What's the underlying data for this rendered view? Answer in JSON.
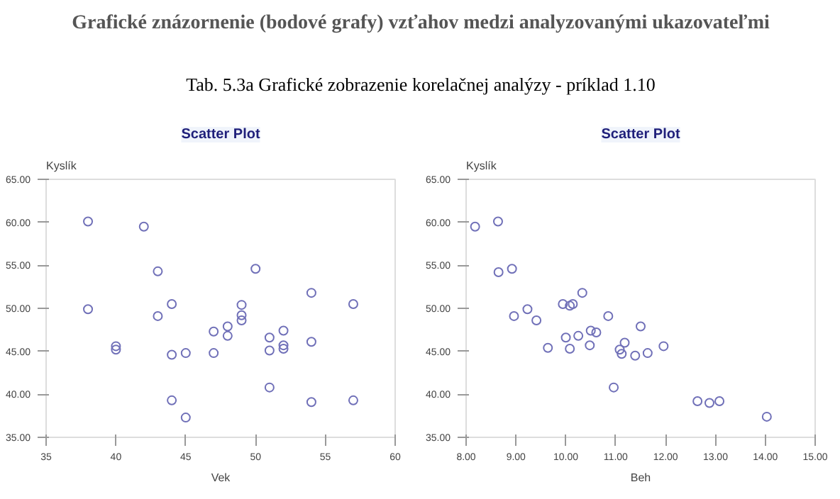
{
  "chart_data": [
    {
      "type": "scatter",
      "title": "Scatter Plot",
      "xlabel": "Vek",
      "ylabel": "Kyslík",
      "annotations": [
        "Grafické znázornenie (bodové grafy) vzťahov medzi analyzovanými ukazovateľmi",
        "Tab. 5.3a Grafické zobrazenie korelačnej analýzy - príklad 1.10"
      ],
      "xlim": [
        35,
        60
      ],
      "xticks": [
        35,
        40,
        45,
        50,
        55,
        60
      ],
      "ylim": [
        35,
        65
      ],
      "yticks": [
        {
          "value": 35,
          "label": "35.00"
        },
        {
          "value": 40,
          "label": "40.00"
        },
        {
          "value": 45,
          "label": "45.00"
        },
        {
          "value": 50,
          "label": "50.00"
        },
        {
          "value": 55,
          "label": "55.00"
        },
        {
          "value": 60,
          "label": "60.00"
        },
        {
          "value": 65,
          "label": "65.00"
        }
      ],
      "grid": false,
      "marker": "circle",
      "series": [
        {
          "color": "#7070b8",
          "x": [
            38,
            38,
            40,
            40,
            42,
            43,
            43,
            44,
            44,
            44,
            45,
            45,
            47,
            47,
            48,
            48,
            49,
            49,
            49,
            50,
            51,
            51,
            51,
            52,
            52,
            52,
            54,
            54,
            54,
            57,
            57
          ],
          "values": [
            60.1,
            49.9,
            45.6,
            45.2,
            59.5,
            54.3,
            49.1,
            50.5,
            44.6,
            39.3,
            44.8,
            37.3,
            47.3,
            44.8,
            47.9,
            46.8,
            50.4,
            49.2,
            48.6,
            54.6,
            46.6,
            45.1,
            40.8,
            47.4,
            45.7,
            45.3,
            51.8,
            46.1,
            39.1,
            50.5,
            39.3
          ]
        }
      ]
    },
    {
      "type": "scatter",
      "title": "Scatter Plot",
      "xlabel": "Beh",
      "ylabel": "Kyslík",
      "xlim": [
        8,
        15
      ],
      "xticks": [
        {
          "value": 8,
          "label": "8.00"
        },
        {
          "value": 9,
          "label": "9.00"
        },
        {
          "value": 10,
          "label": "10.00"
        },
        {
          "value": 11,
          "label": "11.00"
        },
        {
          "value": 12,
          "label": "12.00"
        },
        {
          "value": 13,
          "label": "13.00"
        },
        {
          "value": 14,
          "label": "14.00"
        },
        {
          "value": 15,
          "label": "15.00"
        }
      ],
      "ylim": [
        35,
        65
      ],
      "yticks": [
        {
          "value": 35,
          "label": "35.00"
        },
        {
          "value": 40,
          "label": "40.00"
        },
        {
          "value": 45,
          "label": "45.00"
        },
        {
          "value": 50,
          "label": "50.00"
        },
        {
          "value": 55,
          "label": "55.00"
        },
        {
          "value": 60,
          "label": "60.00"
        },
        {
          "value": 65,
          "label": "65.00"
        }
      ],
      "grid": false,
      "marker": "circle",
      "series": [
        {
          "color": "#7070b8",
          "x": [
            8.18,
            8.64,
            8.65,
            8.92,
            8.96,
            9.23,
            9.41,
            9.64,
            9.94,
            10.0,
            10.08,
            10.08,
            10.14,
            10.25,
            10.33,
            10.48,
            10.5,
            10.61,
            10.85,
            10.96,
            11.08,
            11.12,
            11.18,
            11.39,
            11.5,
            11.64,
            11.96,
            12.64,
            12.88,
            13.08,
            14.03
          ],
          "values": [
            59.5,
            60.1,
            54.2,
            54.6,
            49.1,
            49.9,
            48.6,
            45.4,
            50.5,
            46.6,
            50.3,
            45.3,
            50.5,
            46.8,
            51.8,
            45.7,
            47.4,
            47.2,
            49.1,
            40.8,
            45.2,
            44.7,
            46.0,
            44.5,
            47.9,
            44.8,
            45.6,
            39.2,
            39.0,
            39.2,
            37.4
          ]
        }
      ]
    }
  ]
}
